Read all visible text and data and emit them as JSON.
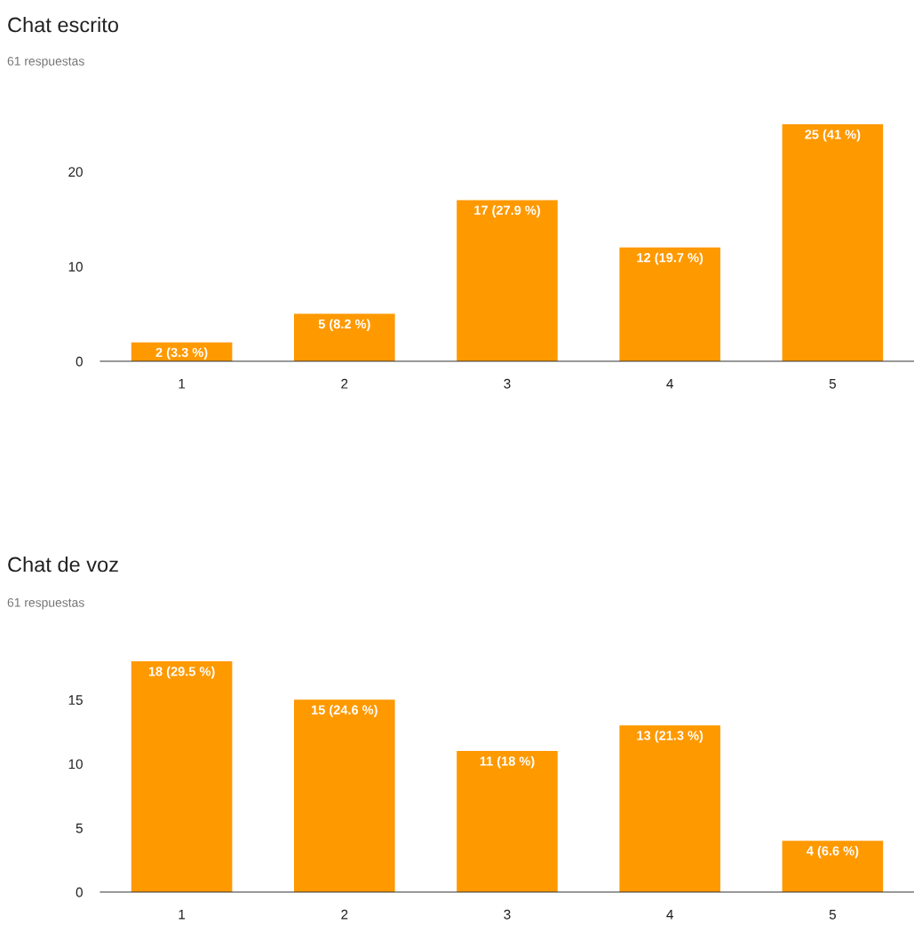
{
  "chart_data": [
    {
      "type": "bar",
      "title": "Chat escrito",
      "subtitle": "61 respuestas",
      "categories": [
        "1",
        "2",
        "3",
        "4",
        "5"
      ],
      "values": [
        2,
        5,
        17,
        12,
        25
      ],
      "color": "#ff9900",
      "value_labels": [
        "2 (3.3 %)",
        "5 (8.2 %)",
        "17 (27.9 %)",
        "12 (19.7 %)",
        "25 (41 %)"
      ],
      "ylim": [
        0,
        25
      ],
      "yticks": [
        0,
        10,
        20
      ],
      "grid": false,
      "legend": false
    },
    {
      "type": "bar",
      "title": "Chat de voz",
      "subtitle": "61 respuestas",
      "categories": [
        "1",
        "2",
        "3",
        "4",
        "5"
      ],
      "values": [
        18,
        15,
        11,
        13,
        4
      ],
      "color": "#ff9900",
      "value_labels": [
        "18 (29.5 %)",
        "15 (24.6 %)",
        "11 (18 %)",
        "13 (21.3 %)",
        "4 (6.6 %)"
      ],
      "ylim": [
        0,
        18
      ],
      "yticks": [
        0,
        5,
        10,
        15
      ],
      "grid": false,
      "legend": false
    }
  ]
}
